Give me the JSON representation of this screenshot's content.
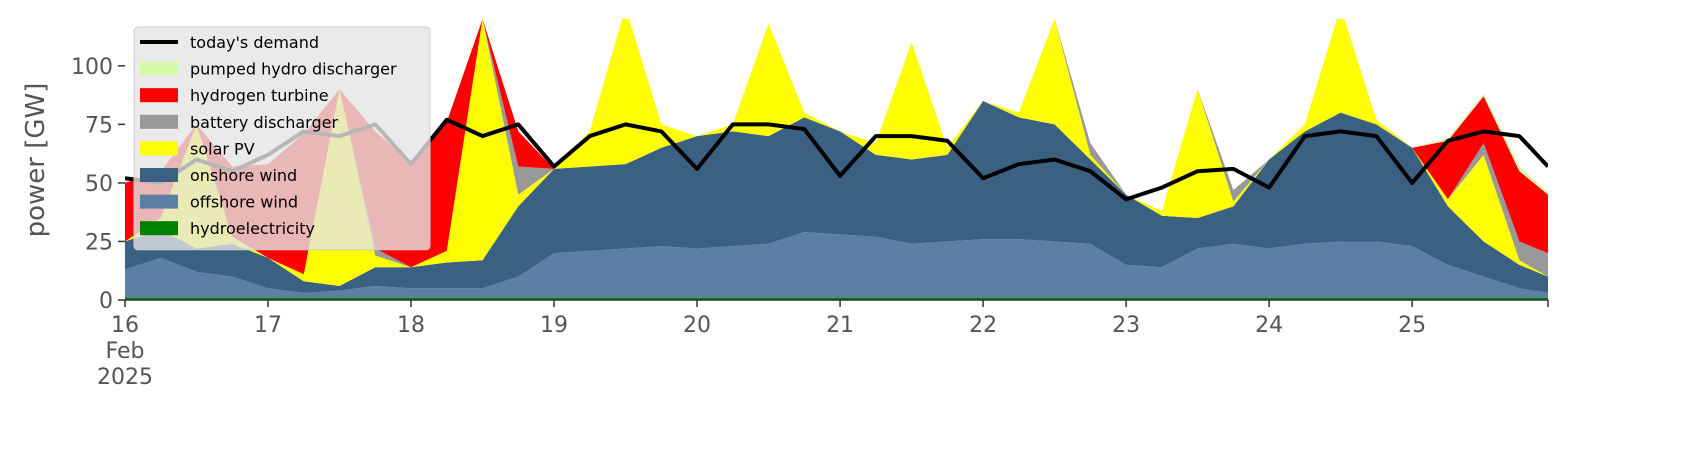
{
  "chart_data": {
    "type": "area",
    "stacked": true,
    "ylabel": "power [GW]",
    "x": [
      16,
      16.25,
      16.5,
      16.75,
      17,
      17.25,
      17.5,
      17.75,
      18,
      18.25,
      18.5,
      18.75,
      19,
      19.25,
      19.5,
      19.75,
      20,
      20.25,
      20.5,
      20.75,
      21,
      21.25,
      21.5,
      21.75,
      22,
      22.25,
      22.5,
      22.75,
      23,
      23.25,
      23.5,
      23.75,
      24,
      24.25,
      24.5,
      24.75,
      25,
      25.25,
      25.5,
      25.75,
      25.95
    ],
    "xlim": [
      16,
      25.95
    ],
    "xticks": [
      {
        "value": 16,
        "label": "16\nFeb\n2025"
      },
      17,
      18,
      19,
      20,
      21,
      22,
      23,
      24,
      25
    ],
    "ylim": [
      0,
      120
    ],
    "yticks": [
      0,
      25,
      50,
      75,
      100
    ],
    "legend": "upper left",
    "series": [
      {
        "name": "today's demand",
        "type": "line",
        "color": "#000000",
        "values": [
          52,
          50,
          60,
          55,
          62,
          72,
          70,
          75,
          58,
          77,
          70,
          75,
          57,
          70,
          75,
          72,
          56,
          75,
          75,
          73,
          53,
          70,
          70,
          68,
          52,
          58,
          60,
          55,
          43,
          48,
          55,
          56,
          48,
          70,
          72,
          70,
          50,
          68,
          72,
          70,
          57
        ]
      },
      {
        "name": "pumped hydro discharger",
        "type": "area",
        "color": "#d9f7a8",
        "values": [
          0,
          0,
          0,
          0,
          0,
          0,
          0,
          0,
          0,
          0,
          0,
          0,
          0,
          0,
          0,
          0,
          0,
          0,
          0,
          0,
          0,
          0,
          0,
          0,
          0,
          0,
          0,
          0,
          0,
          0,
          0,
          0,
          0,
          0,
          0,
          0,
          0,
          1,
          1,
          2,
          1
        ]
      },
      {
        "name": "hydrogen turbine",
        "type": "area",
        "color": "#ff0000",
        "values": [
          25,
          20,
          0,
          30,
          40,
          60,
          0,
          50,
          45,
          55,
          0,
          15,
          0,
          0,
          0,
          0,
          0,
          0,
          0,
          0,
          0,
          0,
          0,
          0,
          0,
          0,
          0,
          0,
          0,
          0,
          0,
          0,
          0,
          0,
          0,
          0,
          0,
          25,
          20,
          30,
          25
        ]
      },
      {
        "name": "battery discharger",
        "type": "area",
        "color": "#999999",
        "values": [
          0,
          0,
          0,
          0,
          0,
          0,
          0,
          3,
          0,
          0,
          0,
          12,
          0,
          0,
          0,
          0,
          0,
          0,
          0,
          0,
          0,
          0,
          0,
          0,
          0,
          0,
          0,
          5,
          0,
          0,
          0,
          5,
          0,
          0,
          0,
          0,
          0,
          0,
          5,
          8,
          10
        ]
      },
      {
        "name": "solar PV",
        "type": "area",
        "color": "#ffff00",
        "values": [
          0,
          5,
          53,
          3,
          0,
          3,
          84,
          5,
          0,
          5,
          103,
          5,
          0,
          15,
          67,
          10,
          0,
          3,
          48,
          2,
          0,
          5,
          50,
          3,
          0,
          2,
          45,
          2,
          0,
          2,
          55,
          2,
          0,
          3,
          45,
          2,
          0,
          3,
          37,
          2,
          0
        ]
      },
      {
        "name": "onshore wind",
        "type": "area",
        "color": "#3b6182",
        "values": [
          12,
          12,
          10,
          14,
          13,
          5,
          2,
          8,
          9,
          11,
          12,
          30,
          36,
          36,
          36,
          42,
          48,
          49,
          46,
          49,
          44,
          35,
          36,
          37,
          59,
          52,
          50,
          36,
          30,
          22,
          13,
          16,
          38,
          48,
          55,
          50,
          42,
          25,
          15,
          10,
          7
        ]
      },
      {
        "name": "offshore wind",
        "type": "area",
        "color": "#5b80a3",
        "values": [
          12,
          17,
          11,
          9,
          4,
          2,
          3,
          5,
          4,
          4,
          4,
          9,
          19,
          20,
          21,
          22,
          21,
          22,
          23,
          28,
          27,
          26,
          23,
          24,
          25,
          25,
          24,
          23,
          14,
          13,
          21,
          23,
          21,
          23,
          24,
          24,
          22,
          14,
          9,
          4,
          2
        ]
      },
      {
        "name": "hydroelectricity",
        "type": "area",
        "color": "#008000",
        "values": [
          1,
          1,
          1,
          1,
          1,
          1,
          1,
          1,
          1,
          1,
          1,
          1,
          1,
          1,
          1,
          1,
          1,
          1,
          1,
          1,
          1,
          1,
          1,
          1,
          1,
          1,
          1,
          1,
          1,
          1,
          1,
          1,
          1,
          1,
          1,
          1,
          1,
          1,
          1,
          1,
          1
        ]
      }
    ]
  }
}
